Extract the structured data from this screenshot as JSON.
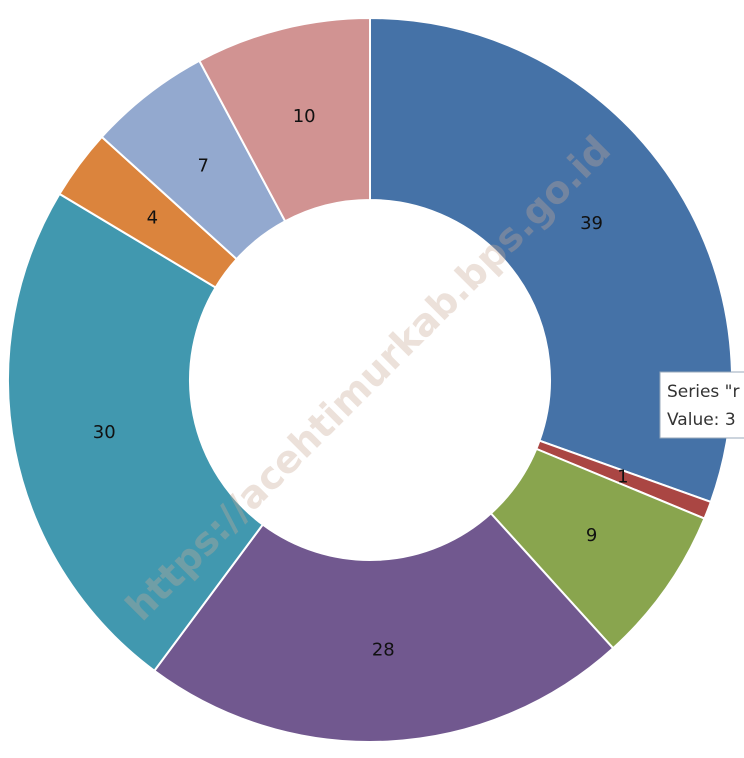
{
  "chart_data": {
    "type": "donut",
    "values": [
      39,
      1,
      9,
      28,
      30,
      4,
      7,
      10
    ],
    "colors": [
      "#4572a7",
      "#aa4643",
      "#89a54e",
      "#71588f",
      "#4198af",
      "#db843d",
      "#93a9cf",
      "#d19392"
    ],
    "tooltip": [
      "Series \"r",
      "Value: 3"
    ],
    "watermark": "https://acehtimurkab.bps.go.id"
  }
}
